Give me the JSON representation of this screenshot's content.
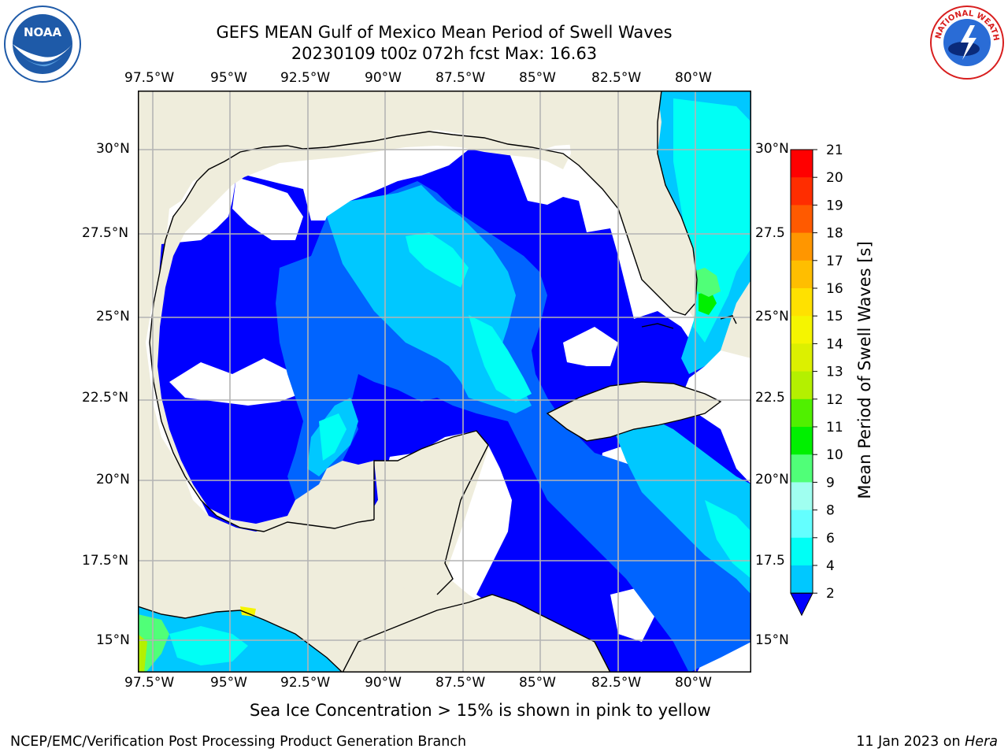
{
  "title": {
    "line1": "GEFS MEAN Gulf of Mexico Mean Period of Swell Waves",
    "line2": "20230109 t00z 072h fcst   Max: 16.63"
  },
  "lon_ticks": [
    "97.5°W",
    "95°W",
    "92.5°W",
    "90°W",
    "87.5°W",
    "85°W",
    "82.5°W",
    "80°W"
  ],
  "lat_ticks": [
    "30°N",
    "27.5°N",
    "25°N",
    "22.5°N",
    "20°N",
    "17.5°N",
    "15°N"
  ],
  "lat_ticks_right": [
    "30°N",
    "27.5",
    "25°N",
    "22.5",
    "20°N",
    "17.5",
    "15°N"
  ],
  "colorbar": {
    "label": "Mean Period of Swell Waves [s]",
    "ticks": [
      "2",
      "4",
      "6",
      "8",
      "9",
      "10",
      "11",
      "12",
      "13",
      "14",
      "15",
      "16",
      "17",
      "18",
      "19",
      "20",
      "21"
    ],
    "colors": [
      "#0000ff",
      "#0064ff",
      "#00c8ff",
      "#00fff5",
      "#64ffff",
      "#a0fff0",
      "#50ff78",
      "#00f000",
      "#50f000",
      "#b4f000",
      "#dcf000",
      "#f5f500",
      "#ffe100",
      "#ffbe00",
      "#ff9600",
      "#ff5a00",
      "#ff2d00",
      "#ff0000"
    ]
  },
  "caption": "Sea Ice Concentration > 15% is shown in pink to yellow",
  "footer_left": "NCEP/EMC/Verification Post Processing Product Generation Branch",
  "footer_right_date": "11 Jan 2023 on ",
  "footer_right_host": "Hera",
  "logos": {
    "left": {
      "text": "NOAA",
      "icon": "noaa-logo-icon",
      "color": "#1e5aa8"
    },
    "right": {
      "text": "NATIONAL WEATHER SERVICE",
      "icon": "nws-logo-icon",
      "color": "#d81e1e"
    }
  },
  "map_colors": {
    "land": "#efeddc",
    "ocean_low": "#0000ff",
    "ocean_mid": "#0064ff",
    "ocean_cyan": "#00c8ff",
    "ocean_aqua": "#00fff5",
    "green": "#00f000"
  }
}
